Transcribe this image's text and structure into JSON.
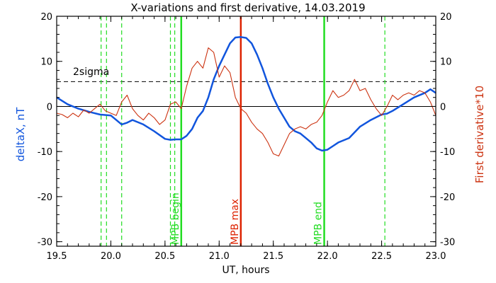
{
  "chart_data": {
    "type": "line",
    "title": "X-variations and first derivative, 14.03.2019",
    "xlabel": "UT, hours",
    "ylabel_left": "deltaX, nT",
    "ylabel_right": "First derivative*10",
    "xlim": [
      19.5,
      23.0
    ],
    "ylim_left": [
      -31,
      20
    ],
    "ylim_right": [
      -31,
      20
    ],
    "x_ticks": [
      "19.5",
      "20.0",
      "20.5",
      "21.0",
      "21.5",
      "22.0",
      "22.5",
      "23.0"
    ],
    "y_ticks_left": [
      "20",
      "10",
      "0",
      "-10",
      "-20",
      "-30"
    ],
    "y_ticks_right": [
      "20",
      "10",
      "0",
      "-10",
      "-20",
      "-30"
    ],
    "colors": {
      "deltaX": "#1155dd",
      "derivative": "#cc3311",
      "mpb_green": "#22dd22",
      "mpb_red": "#dd2200"
    },
    "sigma_line": {
      "label": "2sigma",
      "value": 5.5
    },
    "zero_line": 0,
    "series": [
      {
        "axis": "left",
        "color": "#1155dd",
        "x": [
          19.5,
          19.6,
          19.7,
          19.8,
          19.9,
          20.0,
          20.05,
          20.1,
          20.15,
          20.2,
          20.3,
          20.4,
          20.5,
          20.55,
          20.6,
          20.65,
          20.7,
          20.75,
          20.8,
          20.85,
          20.9,
          20.95,
          21.0,
          21.05,
          21.1,
          21.15,
          21.2,
          21.25,
          21.3,
          21.35,
          21.4,
          21.45,
          21.5,
          21.55,
          21.6,
          21.65,
          21.7,
          21.75,
          21.8,
          21.85,
          21.9,
          21.95,
          22.0,
          22.05,
          22.1,
          22.2,
          22.3,
          22.4,
          22.5,
          22.55,
          22.6,
          22.7,
          22.8,
          22.9,
          22.95,
          23.0
        ],
        "y": [
          2,
          0.5,
          -0.5,
          -1.2,
          -1.8,
          -2.0,
          -3.0,
          -4.0,
          -3.6,
          -3.0,
          -4.0,
          -5.5,
          -7.2,
          -7.4,
          -7.3,
          -7.3,
          -6.5,
          -5.0,
          -2.5,
          -1.0,
          2.0,
          6.0,
          9.0,
          11.5,
          14.0,
          15.3,
          15.4,
          15.2,
          14.0,
          11.5,
          8.5,
          5.0,
          2.0,
          -0.5,
          -2.5,
          -4.5,
          -5.5,
          -6.0,
          -7.0,
          -8.0,
          -9.3,
          -9.8,
          -9.6,
          -8.8,
          -8.0,
          -7.0,
          -4.5,
          -3.0,
          -1.8,
          -1.6,
          -1.0,
          0.5,
          2.0,
          3.0,
          3.8,
          3.0
        ]
      },
      {
        "axis": "right",
        "color": "#cc3311",
        "x": [
          19.5,
          19.55,
          19.6,
          19.65,
          19.7,
          19.75,
          19.8,
          19.85,
          19.9,
          19.95,
          20.0,
          20.05,
          20.1,
          20.15,
          20.2,
          20.25,
          20.3,
          20.35,
          20.4,
          20.45,
          20.5,
          20.55,
          20.6,
          20.65,
          20.7,
          20.75,
          20.8,
          20.85,
          20.9,
          20.95,
          21.0,
          21.05,
          21.1,
          21.15,
          21.2,
          21.25,
          21.3,
          21.35,
          21.4,
          21.45,
          21.5,
          21.55,
          21.6,
          21.65,
          21.7,
          21.75,
          21.8,
          21.85,
          21.9,
          21.95,
          22.0,
          22.05,
          22.1,
          22.15,
          22.2,
          22.25,
          22.3,
          22.35,
          22.4,
          22.45,
          22.5,
          22.55,
          22.6,
          22.65,
          22.7,
          22.75,
          22.8,
          22.85,
          22.9,
          22.95,
          23.0
        ],
        "y": [
          -1.5,
          -1.8,
          -2.5,
          -1.5,
          -2.3,
          -0.8,
          -1.5,
          -0.5,
          0.5,
          -1.0,
          -1.5,
          -2.0,
          1.0,
          2.5,
          -0.5,
          -2.0,
          -3.0,
          -1.5,
          -2.5,
          -4.0,
          -3.0,
          0.5,
          1.0,
          -0.5,
          4.5,
          8.5,
          10.0,
          8.5,
          13.0,
          12.0,
          6.5,
          9.0,
          7.5,
          2.0,
          -0.5,
          -1.5,
          -3.5,
          -5.0,
          -6.0,
          -8.0,
          -10.5,
          -11.0,
          -8.5,
          -6.0,
          -5.0,
          -4.5,
          -5.0,
          -4.0,
          -3.5,
          -2.0,
          1.0,
          3.5,
          2.0,
          2.5,
          3.5,
          6.0,
          3.5,
          4.0,
          1.5,
          -0.5,
          -2.0,
          0.0,
          2.5,
          1.5,
          2.5,
          3.0,
          2.5,
          3.5,
          3.0,
          1.0,
          -2.0
        ]
      }
    ],
    "vertical_markers": [
      {
        "x": 19.91,
        "style": "dashed",
        "color": "#22dd22",
        "label": ""
      },
      {
        "x": 19.96,
        "style": "dashed",
        "color": "#22dd22",
        "label": ""
      },
      {
        "x": 20.1,
        "style": "dashed",
        "color": "#22dd22",
        "label": ""
      },
      {
        "x": 20.55,
        "style": "dashed",
        "color": "#22dd22",
        "label": ""
      },
      {
        "x": 20.59,
        "style": "dashed",
        "color": "#22dd22",
        "label": ""
      },
      {
        "x": 20.65,
        "style": "solid",
        "color": "#22dd22",
        "label": "MPB begin"
      },
      {
        "x": 21.2,
        "style": "solid",
        "color": "#dd2200",
        "label": "MPB max"
      },
      {
        "x": 21.97,
        "style": "solid",
        "color": "#22dd22",
        "label": "MPB end"
      },
      {
        "x": 22.53,
        "style": "dashed",
        "color": "#22dd22",
        "label": ""
      }
    ]
  }
}
